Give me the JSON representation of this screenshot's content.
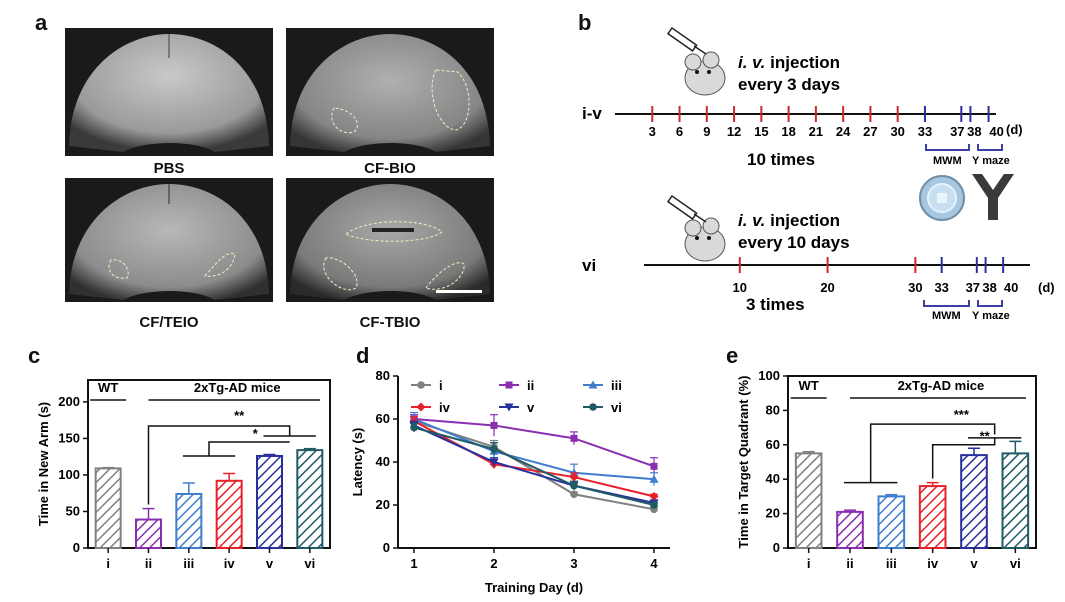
{
  "panel_a": {
    "letter": "a",
    "images": [
      "PBS",
      "CF-BIO",
      "CF/TEIO",
      "CF-TBIO"
    ]
  },
  "panel_b": {
    "letter": "b",
    "row1": {
      "group": "i-v",
      "injection_route": "i. v.",
      "injection_word": "injection",
      "frequency": "every 3 days",
      "ticks": [
        "3",
        "6",
        "9",
        "12",
        "15",
        "18",
        "21",
        "24",
        "27",
        "30",
        "33",
        "37",
        "38",
        "40"
      ],
      "unit": "(d)",
      "count": "10 times",
      "tests": [
        "MWM",
        "Y maze"
      ]
    },
    "row2": {
      "group": "vi",
      "injection_route": "i. v.",
      "injection_word": "injection",
      "frequency": "every 10 days",
      "ticks": [
        "10",
        "20",
        "30",
        "33",
        "37",
        "38",
        "40"
      ],
      "unit": "(d)",
      "count": "3 times",
      "tests": [
        "MWM",
        "Y maze"
      ]
    }
  },
  "colors": {
    "i": "#808080",
    "ii": "#8a2fb0",
    "iii": "#3f7ecf",
    "iv": "#e8202a",
    "v": "#2a2f9e",
    "vi": "#1f5a66",
    "red_tick": "#cc2a2a",
    "blue_tick": "#2b2f9c",
    "bracket": "#3b3fa8"
  },
  "chart_data": [
    {
      "letter": "c",
      "type": "bar",
      "categories": [
        "i",
        "ii",
        "iii",
        "iv",
        "v",
        "vi"
      ],
      "values": [
        109,
        39,
        74,
        92,
        126,
        134
      ],
      "errors": [
        1,
        15,
        15,
        10,
        2,
        2
      ],
      "ylabel": "Time in New Arm (s)",
      "ylim": [
        0,
        230
      ],
      "yticks": [
        0,
        50,
        100,
        150,
        200
      ],
      "group_labels": [
        "WT",
        "2xTg-AD mice"
      ],
      "significance": [
        "**",
        "*"
      ]
    },
    {
      "letter": "d",
      "type": "line",
      "x": [
        1,
        2,
        3,
        4
      ],
      "xlabel": "Training Day (d)",
      "ylabel": "Latency (s)",
      "ylim": [
        0,
        80
      ],
      "yticks": [
        0,
        20,
        40,
        60,
        80
      ],
      "series": [
        {
          "name": "i",
          "values": [
            59,
            47,
            25,
            18
          ],
          "errors": [
            2,
            3,
            1,
            1
          ]
        },
        {
          "name": "ii",
          "values": [
            60,
            57,
            51,
            38
          ],
          "errors": [
            2,
            5,
            3,
            4
          ]
        },
        {
          "name": "iii",
          "values": [
            60,
            45,
            35,
            32
          ],
          "errors": [
            3,
            4,
            4,
            3
          ]
        },
        {
          "name": "iv",
          "values": [
            59,
            39,
            33,
            24
          ],
          "errors": [
            2,
            2,
            2,
            1
          ]
        },
        {
          "name": "v",
          "values": [
            57,
            40,
            29,
            21
          ],
          "errors": [
            2,
            2,
            2,
            1
          ]
        },
        {
          "name": "vi",
          "values": [
            56,
            46,
            29,
            20
          ],
          "errors": [
            2,
            3,
            2,
            1
          ]
        }
      ]
    },
    {
      "letter": "e",
      "type": "bar",
      "categories": [
        "i",
        "ii",
        "iii",
        "iv",
        "v",
        "vi"
      ],
      "values": [
        55,
        21,
        30,
        36,
        54,
        55
      ],
      "errors": [
        1,
        1,
        1,
        2,
        4,
        7
      ],
      "ylabel": "Time in Target Quadrant (%)",
      "ylim": [
        0,
        100
      ],
      "yticks": [
        0,
        20,
        40,
        60,
        80,
        100
      ],
      "group_labels": [
        "WT",
        "2xTg-AD mice"
      ],
      "significance": [
        "***",
        "**"
      ]
    }
  ]
}
